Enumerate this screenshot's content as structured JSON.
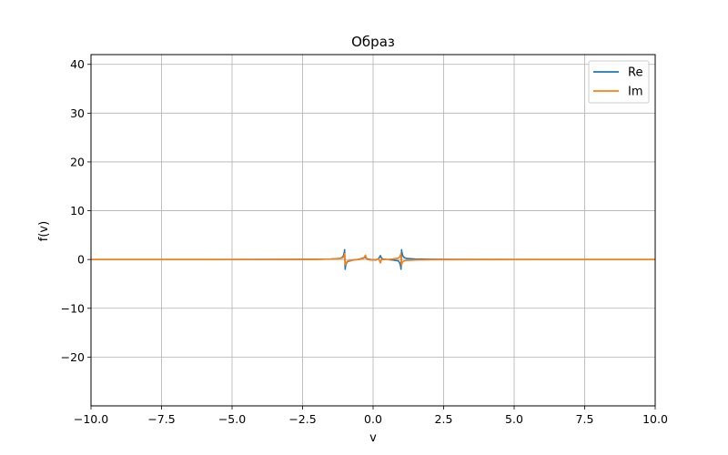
{
  "chart_data": {
    "type": "line",
    "title": "Образ",
    "xlabel": "v",
    "ylabel": "f(v)",
    "xlim": [
      -10,
      10
    ],
    "ylim": [
      -30,
      42
    ],
    "xticks": [
      -10,
      -7.5,
      -5,
      -2.5,
      0,
      2.5,
      5,
      7.5,
      10
    ],
    "xtick_labels": [
      "−10.0",
      "−7.5",
      "−5.0",
      "−2.5",
      "0.0",
      "2.5",
      "5.0",
      "7.5",
      "10.0"
    ],
    "yticks": [
      -20,
      -10,
      0,
      10,
      20,
      30,
      40
    ],
    "ytick_labels": [
      "−20",
      "−10",
      "0",
      "10",
      "20",
      "30",
      "40"
    ],
    "grid": true,
    "legend": "top-right",
    "series": [
      {
        "name": "Re",
        "color": "#1f77b4",
        "x": [
          -10,
          -6,
          -3,
          -2,
          -1.5,
          -1.2,
          -1.1,
          -1.05,
          -1.02,
          -1.01,
          -1.0,
          -0.99,
          -0.98,
          -0.95,
          -0.9,
          -0.7,
          -0.5,
          -0.35,
          -0.3,
          -0.27,
          -0.25,
          -0.2,
          -0.1,
          0,
          0.1,
          0.2,
          0.24,
          0.26,
          0.28,
          0.3,
          0.34,
          0.5,
          0.7,
          0.9,
          0.95,
          0.98,
          0.99,
          1.0,
          1.01,
          1.02,
          1.05,
          1.1,
          1.2,
          1.5,
          2,
          3,
          6,
          10
        ],
        "y": [
          0,
          0,
          0.02,
          0.05,
          0.1,
          0.2,
          0.4,
          0.8,
          1.5,
          2.0,
          0,
          -2.0,
          -1.5,
          -0.8,
          -0.4,
          -0.1,
          0.05,
          0.3,
          0.4,
          0.5,
          0.3,
          0.1,
          0,
          -0.1,
          -0.1,
          0.2,
          0.6,
          0.8,
          0.5,
          0.3,
          0.1,
          0,
          -0.1,
          -0.3,
          -0.8,
          -1.5,
          -2.0,
          0,
          2.0,
          1.5,
          0.8,
          0.4,
          0.2,
          0.1,
          0.05,
          0.02,
          0,
          0
        ]
      },
      {
        "name": "Im",
        "color": "#ff7f0e",
        "x": [
          -10,
          -6,
          -3,
          -2,
          -1.5,
          -1.2,
          -1.1,
          -1.05,
          -1.02,
          -1.01,
          -1.0,
          -0.99,
          -0.98,
          -0.95,
          -0.9,
          -0.7,
          -0.5,
          -0.35,
          -0.3,
          -0.27,
          -0.25,
          -0.2,
          -0.1,
          0,
          0.1,
          0.2,
          0.24,
          0.26,
          0.28,
          0.3,
          0.34,
          0.5,
          0.7,
          0.9,
          0.95,
          0.98,
          0.99,
          1.0,
          1.01,
          1.02,
          1.05,
          1.1,
          1.2,
          1.5,
          2,
          3,
          6,
          10
        ],
        "y": [
          0,
          0,
          0.02,
          0.05,
          0.1,
          0.2,
          0.3,
          0.5,
          0.8,
          1.2,
          0.6,
          -0.8,
          -1.1,
          -0.6,
          -0.3,
          -0.1,
          0,
          0.2,
          0.6,
          0.9,
          0.5,
          0,
          -0.1,
          -0.1,
          0,
          0.1,
          -0.4,
          -0.7,
          -0.3,
          0,
          0,
          0,
          0.1,
          0.3,
          0.6,
          1.1,
          0.8,
          -0.6,
          -1.2,
          -0.8,
          -0.5,
          -0.3,
          -0.2,
          -0.1,
          -0.05,
          -0.02,
          0,
          0
        ]
      }
    ]
  }
}
